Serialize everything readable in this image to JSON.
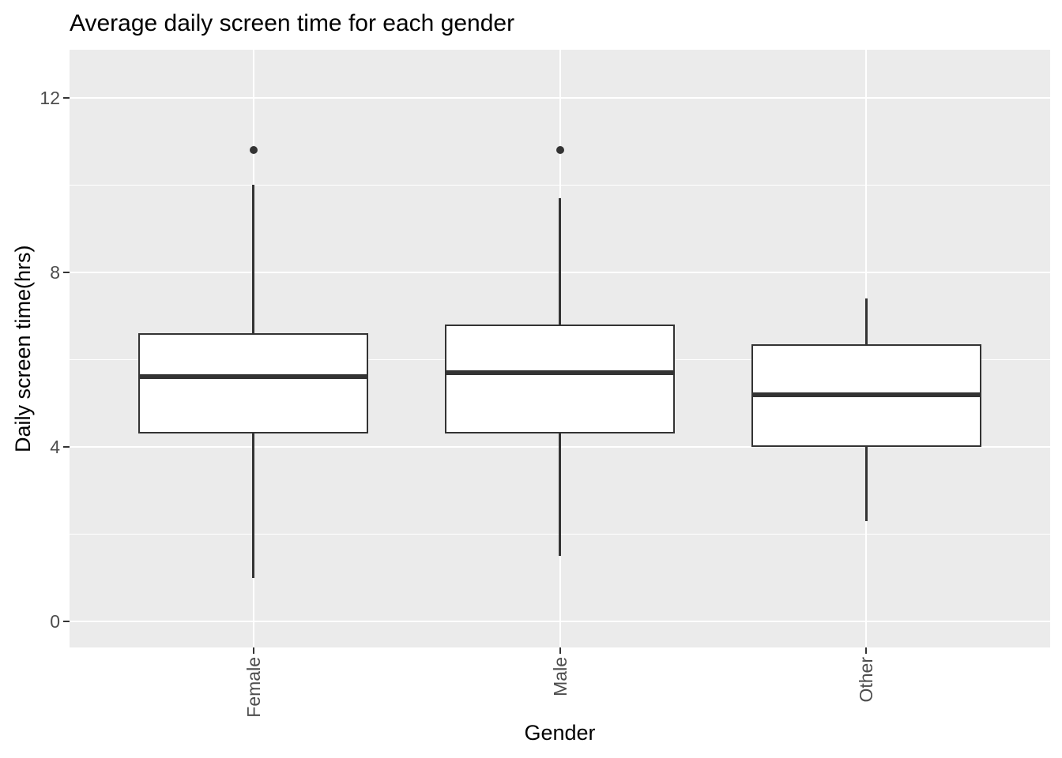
{
  "chart_data": {
    "type": "boxplot",
    "title": "Average daily screen time for each gender",
    "xlabel": "Gender",
    "ylabel": "Daily screen time(hrs)",
    "categories": [
      "Female",
      "Male",
      "Other"
    ],
    "series": [
      {
        "name": "Female",
        "whisker_min": 1.0,
        "q1": 4.3,
        "median": 5.6,
        "q3": 6.6,
        "whisker_max": 10.0,
        "outliers": [
          10.8
        ]
      },
      {
        "name": "Male",
        "whisker_min": 1.5,
        "q1": 4.3,
        "median": 5.7,
        "q3": 6.8,
        "whisker_max": 9.7,
        "outliers": [
          10.8
        ]
      },
      {
        "name": "Other",
        "whisker_min": 2.3,
        "q1": 4.0,
        "median": 5.2,
        "q3": 6.35,
        "whisker_max": 7.4,
        "outliers": []
      }
    ],
    "y_axis": {
      "ticks_major": [
        0,
        4,
        8,
        12
      ],
      "ticks_minor": [
        2,
        6,
        10
      ],
      "ylim": [
        -0.6,
        13.1
      ]
    },
    "grid": "horizontal major+minor, vertical major at each category",
    "legend_position": "none",
    "colors": {
      "panel_background": "#EBEBEB",
      "gridline": "#FFFFFF",
      "box_fill": "#FFFFFF",
      "box_stroke": "#333333",
      "axis_text": "#4D4D4D",
      "title_text": "#000000"
    }
  }
}
